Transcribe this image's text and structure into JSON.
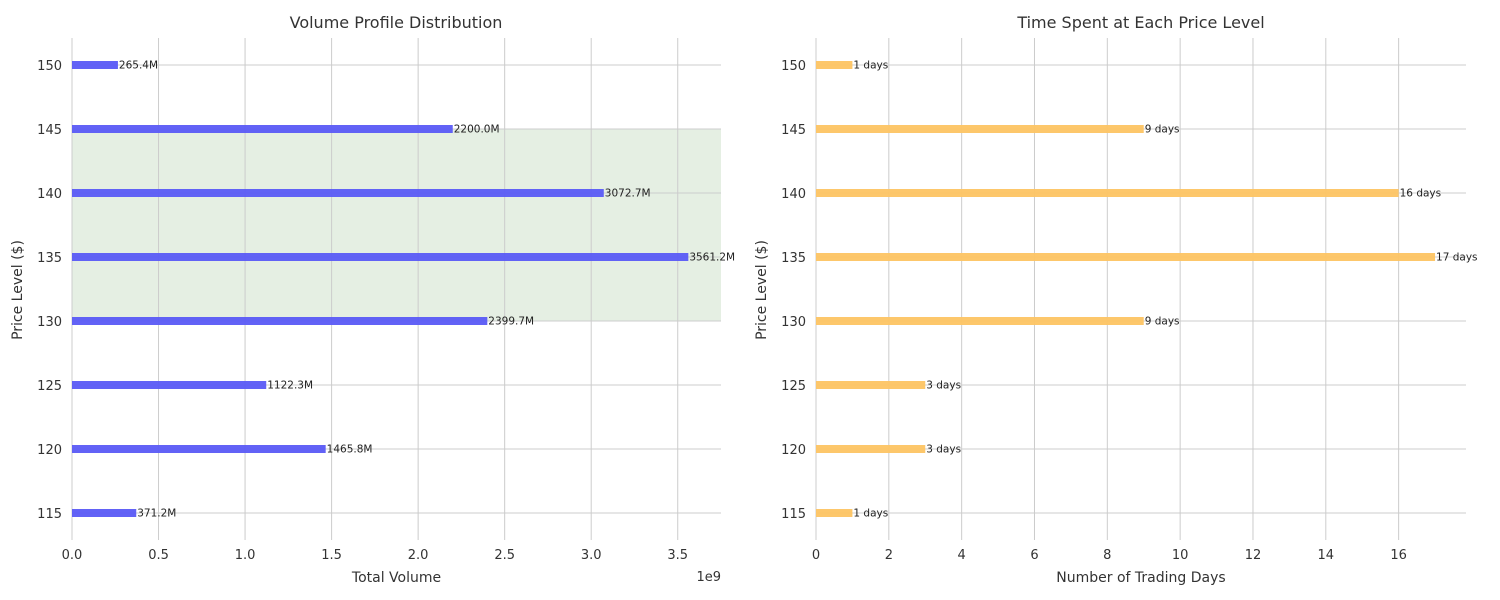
{
  "chart_data": [
    {
      "type": "bar",
      "orientation": "horizontal",
      "title": "Volume Profile Distribution",
      "xlabel": "Total Volume",
      "ylabel": "Price Level ($)",
      "x_offset_label": "1e9",
      "xlim": [
        0,
        3750000000
      ],
      "x_ticks": [
        0,
        500000000,
        1000000000,
        1500000000,
        2000000000,
        2500000000,
        3000000000,
        3500000000
      ],
      "x_tick_labels": [
        "0.0",
        "0.5",
        "1.0",
        "1.5",
        "2.0",
        "2.5",
        "3.0",
        "3.5"
      ],
      "categories": [
        "150",
        "145",
        "140",
        "135",
        "130",
        "125",
        "120",
        "115"
      ],
      "values": [
        265400000,
        2200000000,
        3072700000,
        3561200000,
        2399700000,
        1122300000,
        1465800000,
        371200000
      ],
      "value_labels": [
        "265.4M",
        "2200.0M",
        "3072.7M",
        "3561.2M",
        "2399.7M",
        "1122.3M",
        "1465.8M",
        "371.2M"
      ],
      "value_area": {
        "from": "145",
        "to": "130",
        "color": "#e5efe3"
      },
      "bar_color": "#5a5af5",
      "grid": true,
      "legend": "none"
    },
    {
      "type": "bar",
      "orientation": "horizontal",
      "title": "Time Spent at Each Price Level",
      "xlabel": "Number of Trading Days",
      "ylabel": "Price Level ($)",
      "xlim": [
        0,
        17.85
      ],
      "x_ticks": [
        0,
        2,
        4,
        6,
        8,
        10,
        12,
        14,
        16
      ],
      "x_tick_labels": [
        "0",
        "2",
        "4",
        "6",
        "8",
        "10",
        "12",
        "14",
        "16"
      ],
      "categories": [
        "150",
        "145",
        "140",
        "135",
        "130",
        "125",
        "120",
        "115"
      ],
      "values": [
        1,
        9,
        16,
        17,
        9,
        3,
        3,
        1
      ],
      "value_labels": [
        "1 days",
        "9 days",
        "16 days",
        "17 days",
        "9 days",
        "3 days",
        "3 days",
        "1 days"
      ],
      "bar_color": "#fdc463",
      "grid": true,
      "legend": "none"
    }
  ]
}
